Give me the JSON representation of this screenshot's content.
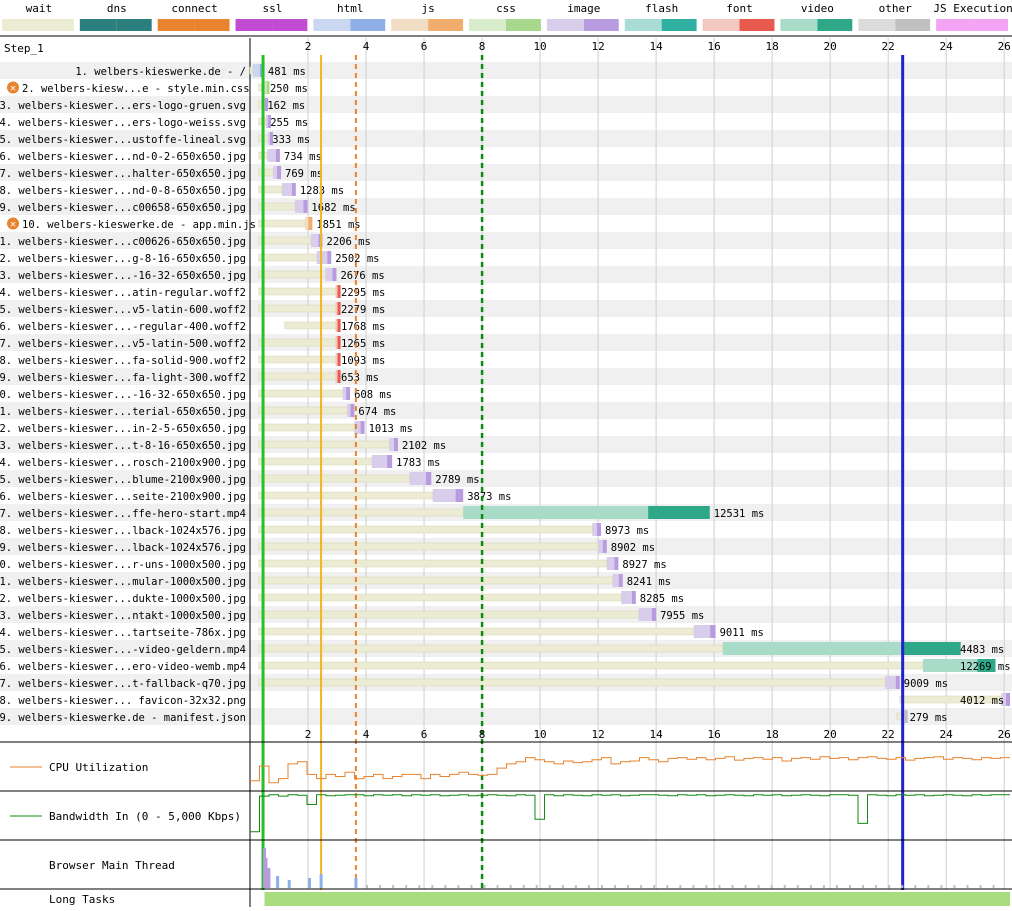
{
  "legend": [
    {
      "label": "wait",
      "color": "#ecebd3",
      "dark": "#ecebd3"
    },
    {
      "label": "dns",
      "color": "#2b7f7f",
      "dark": "#2b7f7f"
    },
    {
      "label": "connect",
      "color": "#e8842e",
      "dark": "#e8842e"
    },
    {
      "label": "ssl",
      "color": "#c24bd4",
      "dark": "#c24bd4"
    },
    {
      "label": "html",
      "color": "#c9d8f0",
      "dark": "#8fb0e6"
    },
    {
      "label": "js",
      "color": "#f1dcc4",
      "dark": "#f0ad6d"
    },
    {
      "label": "css",
      "color": "#d8eccb",
      "dark": "#a8d88e"
    },
    {
      "label": "image",
      "color": "#d8cdeb",
      "dark": "#b99be0"
    },
    {
      "label": "flash",
      "color": "#a8dcd5",
      "dark": "#2fb0a0"
    },
    {
      "label": "font",
      "color": "#f3c8c1",
      "dark": "#e85a4d"
    },
    {
      "label": "video",
      "color": "#a8dcc8",
      "dark": "#2fa88a"
    },
    {
      "label": "other",
      "color": "#dcdcdc",
      "dark": "#c0c0c0"
    },
    {
      "label": "JS Execution",
      "color": "#f5a3f5",
      "dark": "#f5a3f5"
    }
  ],
  "step_label": "Step_1",
  "chart_data": {
    "type": "waterfall",
    "xlim": [
      0,
      26.2
    ],
    "ticks": [
      2,
      4,
      6,
      8,
      10,
      12,
      14,
      16,
      18,
      20,
      22,
      24,
      26
    ],
    "markers": [
      {
        "t": 0.45,
        "color": "#28c028",
        "style": "solid",
        "width": 3
      },
      {
        "t": 2.45,
        "color": "#f2b521",
        "style": "solid",
        "width": 2
      },
      {
        "t": 3.65,
        "color": "#e8842e",
        "style": "dashed",
        "width": 2
      },
      {
        "t": 8.0,
        "color": "#118811",
        "style": "dashed",
        "width": 2.5
      },
      {
        "t": 22.5,
        "color": "#2222cc",
        "style": "solid",
        "width": 3
      }
    ],
    "requests": [
      {
        "label": "1. welbers-kieswerke.de - /",
        "type": "html",
        "start": 0.0,
        "first": 0.1,
        "end": 0.48,
        "ms": "481 ms",
        "error": false
      },
      {
        "label": "2. welbers-kiesw...e - style.min.css",
        "type": "css",
        "start": 0.3,
        "first": 0.5,
        "end": 0.55,
        "ms": "250 ms",
        "error": true
      },
      {
        "label": "3. welbers-kieswer...ers-logo-gruen.svg",
        "type": "image",
        "start": 0.3,
        "first": 0.45,
        "end": 0.46,
        "ms": "162 ms",
        "error": false
      },
      {
        "label": "4. welbers-kieswer...ers-logo-weiss.svg",
        "type": "image",
        "start": 0.3,
        "first": 0.55,
        "end": 0.56,
        "ms": "255 ms",
        "error": false
      },
      {
        "label": "5. welbers-kieswer...ustoffe-lineal.svg",
        "type": "image",
        "start": 0.3,
        "first": 0.62,
        "end": 0.63,
        "ms": "333 ms",
        "error": false
      },
      {
        "label": "6. welbers-kieswer...nd-0-2-650x650.jpg",
        "type": "image",
        "start": 0.3,
        "first": 0.6,
        "end": 1.03,
        "ms": "734 ms",
        "error": false
      },
      {
        "label": "7. welbers-kieswer...halter-650x650.jpg",
        "type": "image",
        "start": 0.3,
        "first": 0.8,
        "end": 1.07,
        "ms": "769 ms",
        "error": false
      },
      {
        "label": "8. welbers-kieswer...nd-0-8-650x650.jpg",
        "type": "image",
        "start": 0.3,
        "first": 1.1,
        "end": 1.58,
        "ms": "1283 ms",
        "error": false
      },
      {
        "label": "9. welbers-kieswer...c00658-650x650.jpg",
        "type": "image",
        "start": 0.3,
        "first": 1.55,
        "end": 1.98,
        "ms": "1682 ms",
        "error": false
      },
      {
        "label": "10. welbers-kieswerke.de - app.min.js",
        "type": "js",
        "start": 0.3,
        "first": 1.9,
        "end": 2.15,
        "ms": "1851 ms",
        "error": true
      },
      {
        "label": "11. welbers-kieswer...c00626-650x650.jpg",
        "type": "image",
        "start": 0.3,
        "first": 2.1,
        "end": 2.5,
        "ms": "2206 ms",
        "error": false
      },
      {
        "label": "12. welbers-kieswer...g-8-16-650x650.jpg",
        "type": "image",
        "start": 0.3,
        "first": 2.3,
        "end": 2.8,
        "ms": "2502 ms",
        "error": false
      },
      {
        "label": "13. welbers-kieswer...-16-32-650x650.jpg",
        "type": "image",
        "start": 0.3,
        "first": 2.6,
        "end": 2.98,
        "ms": "2676 ms",
        "error": false
      },
      {
        "label": "14. welbers-kieswer...atin-regular.woff2",
        "type": "font",
        "start": 0.3,
        "first": 2.95,
        "end": 3.0,
        "ms": "2295 ms",
        "error": false
      },
      {
        "label": "15. welbers-kieswer...v5-latin-600.woff2",
        "type": "font",
        "start": 0.3,
        "first": 2.95,
        "end": 3.0,
        "ms": "2279 ms",
        "error": false
      },
      {
        "label": "16. welbers-kieswer...-regular-400.woff2",
        "type": "font",
        "start": 1.2,
        "first": 2.95,
        "end": 3.0,
        "ms": "1768 ms",
        "error": false
      },
      {
        "label": "17. welbers-kieswer...v5-latin-500.woff2",
        "type": "font",
        "start": 0.3,
        "first": 2.95,
        "end": 3.0,
        "ms": "1265 ms",
        "error": false
      },
      {
        "label": "18. welbers-kieswer...fa-solid-900.woff2",
        "type": "font",
        "start": 0.3,
        "first": 2.95,
        "end": 3.0,
        "ms": "1093 ms",
        "error": false
      },
      {
        "label": "19. welbers-kieswer...fa-light-300.woff2",
        "type": "font",
        "start": 0.3,
        "first": 2.95,
        "end": 3.0,
        "ms": "653 ms",
        "error": false
      },
      {
        "label": "20. welbers-kieswer...-16-32-650x650.jpg",
        "type": "image",
        "start": 0.3,
        "first": 3.2,
        "end": 3.45,
        "ms": "608 ms",
        "error": false
      },
      {
        "label": "21. welbers-kieswer...terial-650x650.jpg",
        "type": "image",
        "start": 0.3,
        "first": 3.35,
        "end": 3.6,
        "ms": "674 ms",
        "error": false
      },
      {
        "label": "22. welbers-kieswer...in-2-5-650x650.jpg",
        "type": "image",
        "start": 0.3,
        "first": 3.6,
        "end": 3.95,
        "ms": "1013 ms",
        "error": false
      },
      {
        "label": "23. welbers-kieswer...t-8-16-650x650.jpg",
        "type": "image",
        "start": 0.3,
        "first": 4.8,
        "end": 5.1,
        "ms": "2102 ms",
        "error": false
      },
      {
        "label": "24. welbers-kieswer...rosch-2100x900.jpg",
        "type": "image",
        "start": 0.3,
        "first": 4.2,
        "end": 4.9,
        "ms": "1783 ms",
        "error": false
      },
      {
        "label": "25. welbers-kieswer...blume-2100x900.jpg",
        "type": "image",
        "start": 0.3,
        "first": 5.5,
        "end": 6.25,
        "ms": "2789 ms",
        "error": false
      },
      {
        "label": "26. welbers-kieswer...seite-2100x900.jpg",
        "type": "image",
        "start": 0.3,
        "first": 6.3,
        "end": 7.35,
        "ms": "3873 ms",
        "error": false
      },
      {
        "label": "27. welbers-kieswer...ffe-hero-start.mp4",
        "type": "video",
        "start": 0.3,
        "first": 7.35,
        "end": 15.85,
        "ms": "12531 ms",
        "error": false
      },
      {
        "label": "28. welbers-kieswer...lback-1024x576.jpg",
        "type": "image",
        "start": 0.3,
        "first": 11.8,
        "end": 12.1,
        "ms": "8973 ms",
        "error": false
      },
      {
        "label": "29. welbers-kieswer...lback-1024x576.jpg",
        "type": "image",
        "start": 0.3,
        "first": 12.0,
        "end": 12.3,
        "ms": "8902 ms",
        "error": false
      },
      {
        "label": "30. welbers-kieswer...r-uns-1000x500.jpg",
        "type": "image",
        "start": 0.3,
        "first": 12.3,
        "end": 12.7,
        "ms": "8927 ms",
        "error": false
      },
      {
        "label": "31. welbers-kieswer...mular-1000x500.jpg",
        "type": "image",
        "start": 0.3,
        "first": 12.5,
        "end": 12.85,
        "ms": "8241 ms",
        "error": false
      },
      {
        "label": "32. welbers-kieswer...dukte-1000x500.jpg",
        "type": "image",
        "start": 0.3,
        "first": 12.8,
        "end": 13.3,
        "ms": "8285 ms",
        "error": false
      },
      {
        "label": "33. welbers-kieswer...ntakt-1000x500.jpg",
        "type": "image",
        "start": 0.3,
        "first": 13.4,
        "end": 14.0,
        "ms": "7955 ms",
        "error": false
      },
      {
        "label": "34. welbers-kieswer...tartseite-786x.jpg",
        "type": "image",
        "start": 0.3,
        "first": 15.3,
        "end": 16.05,
        "ms": "9011 ms",
        "error": false
      },
      {
        "label": "35. welbers-kieswer...-video-geldern.mp4",
        "type": "video",
        "start": 0.3,
        "first": 16.3,
        "end": 24.5,
        "ms": "4483 ms",
        "error": false
      },
      {
        "label": "36. welbers-kieswer...ero-video-wemb.mp4",
        "type": "video",
        "start": 0.3,
        "first": 23.2,
        "end": 25.7,
        "ms": "12269 ms",
        "error": false
      },
      {
        "label": "37. welbers-kieswer...t-fallback-q70.jpg",
        "type": "image",
        "start": 0.3,
        "first": 21.9,
        "end": 22.4,
        "ms": "9009 ms",
        "error": false
      },
      {
        "label": "38. welbers-kieswer... favicon-32x32.png",
        "type": "image",
        "start": 22.4,
        "first": 25.9,
        "end": 26.2,
        "ms": "4012 ms",
        "error": false
      },
      {
        "label": "39. welbers-kieswerke.de - manifest.json",
        "type": "other",
        "start": 22.3,
        "first": 22.5,
        "end": 22.6,
        "ms": "279 ms",
        "error": false
      }
    ],
    "cpu_series": [
      0.15,
      0.5,
      0.1,
      0.2,
      0.55,
      0.6,
      0.3,
      0.2,
      0.3,
      0.25,
      0.35,
      0.2,
      0.25,
      0.3,
      0.2,
      0.25,
      0.3,
      0.3,
      0.2,
      0.3,
      0.25,
      0.3,
      0.35,
      0.3,
      0.28,
      0.3,
      0.45,
      0.55,
      0.6,
      0.7,
      0.65,
      0.6,
      0.55,
      0.62,
      0.58,
      0.6,
      0.65,
      0.7,
      0.55,
      0.6,
      0.62,
      0.7,
      0.65,
      0.6,
      0.68,
      0.7,
      0.66,
      0.7,
      0.65,
      0.68,
      0.72,
      0.64,
      0.68,
      0.7,
      0.66,
      0.7,
      0.62,
      0.68,
      0.7,
      0.66,
      0.72,
      0.68,
      0.7,
      0.65,
      0.7,
      0.72,
      0.68,
      0.66,
      0.7,
      0.64,
      0.68,
      0.7,
      0.72,
      0.66,
      0.7,
      0.68,
      0.65,
      0.7,
      0.68,
      0.7
    ],
    "bandwidth_series": [
      0.1,
      0.95,
      0.98,
      0.95,
      0.98,
      0.97,
      0.75,
      0.98,
      0.96,
      0.97,
      0.98,
      0.98,
      0.96,
      0.98,
      0.97,
      0.98,
      0.96,
      0.98,
      0.97,
      0.98,
      0.96,
      0.97,
      0.98,
      0.96,
      0.97,
      0.98,
      0.97,
      0.96,
      0.98,
      0.97,
      0.4,
      0.98,
      0.96,
      0.98,
      0.97,
      0.96,
      0.98,
      0.97,
      0.98,
      0.96,
      0.97,
      0.98,
      0.98,
      0.97,
      0.96,
      0.98,
      0.97,
      0.98,
      0.96,
      0.97,
      0.98,
      0.97,
      0.96,
      0.98,
      0.97,
      0.98,
      0.96,
      0.97,
      0.98,
      0.97,
      0.96,
      0.98,
      0.98,
      0.97,
      0.3,
      0.98,
      0.97,
      0.96,
      0.98,
      0.97,
      0.98,
      0.96,
      0.97,
      0.98,
      0.97,
      0.96,
      0.98,
      0.97,
      0.98,
      0.98
    ],
    "panels": {
      "cpu_label": "CPU Utilization",
      "bandwidth_label": "Bandwidth In (0 - 5,000 Kbps)",
      "main_thread_label": "Browser Main Thread",
      "long_tasks_label": "Long Tasks"
    }
  }
}
